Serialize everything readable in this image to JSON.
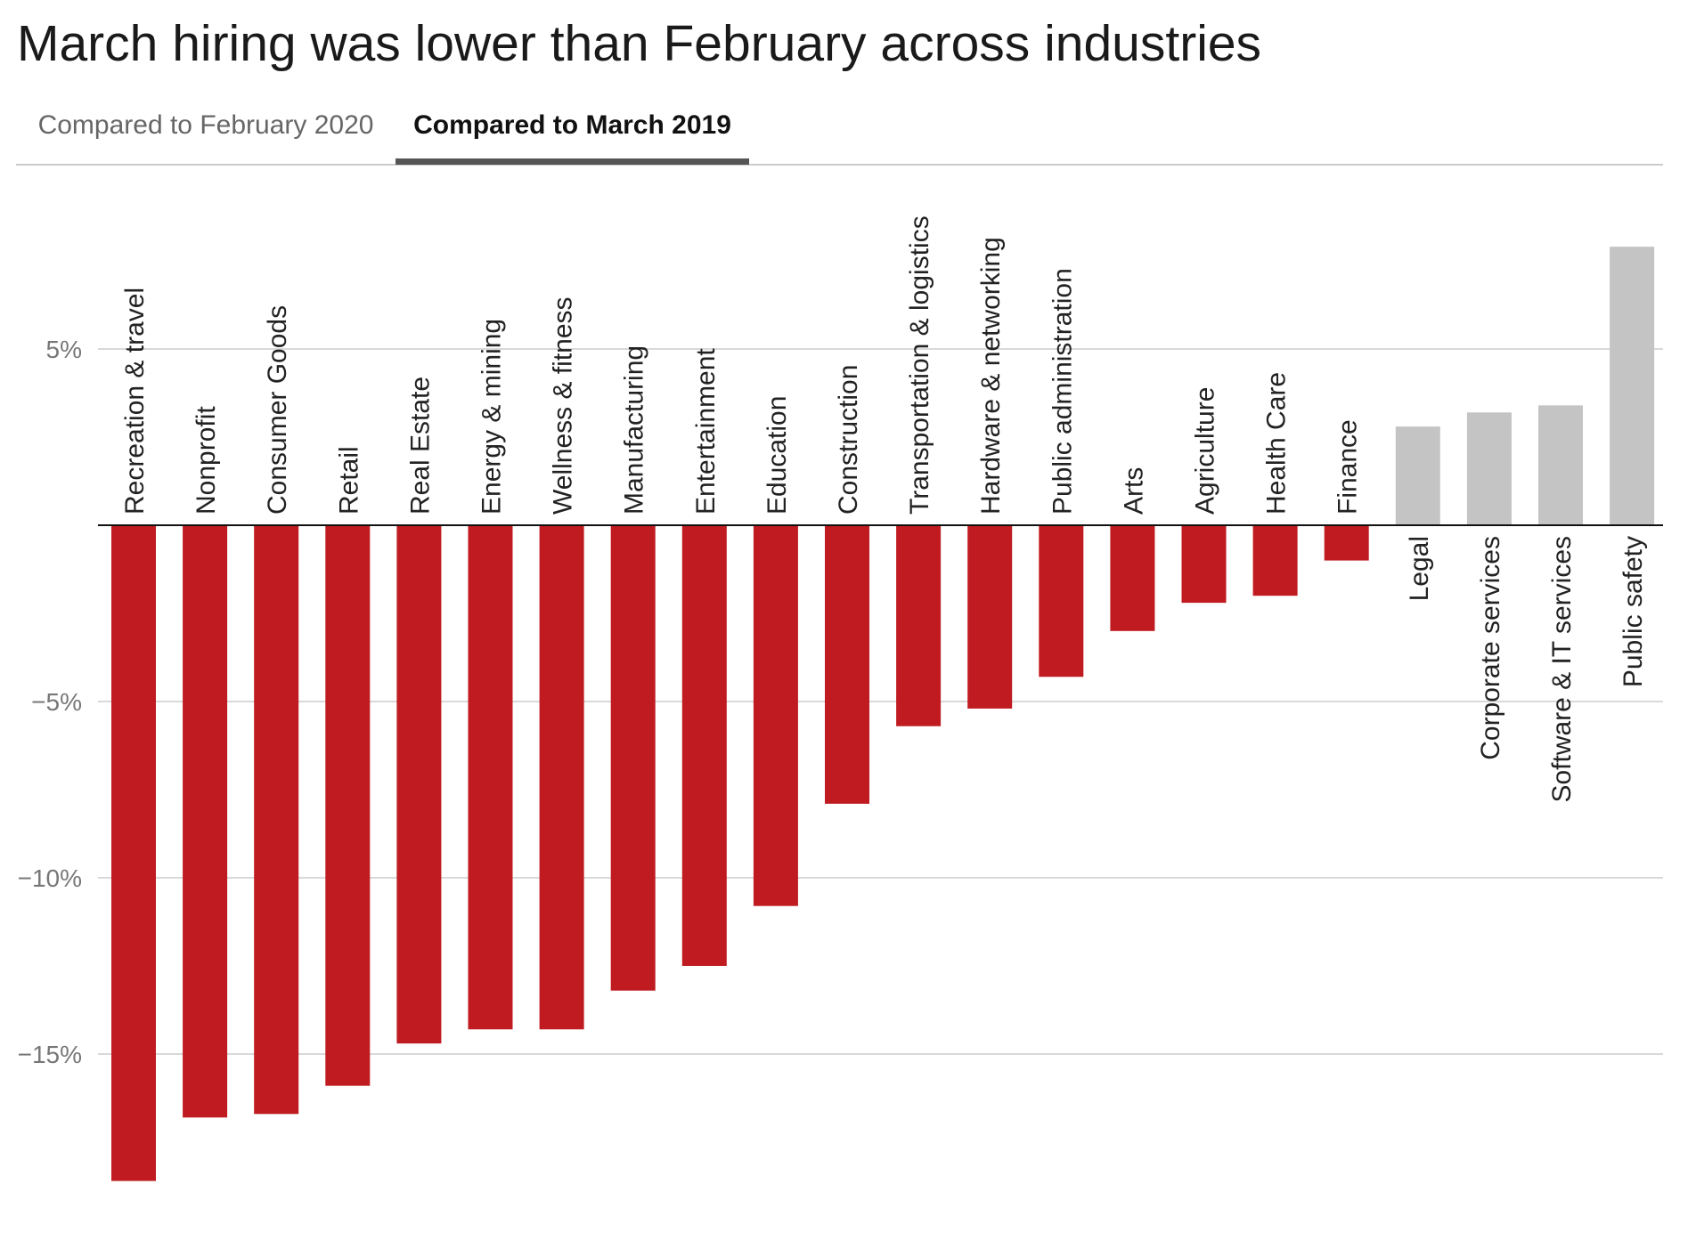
{
  "title": "March hiring was lower than February across industries",
  "tabs": [
    {
      "label": "Compared to February 2020",
      "active": false
    },
    {
      "label": "Compared to March 2019",
      "active": true
    }
  ],
  "colors": {
    "negative": "#bf1b20",
    "positive": "#c4c4c4",
    "grid": "#d9d9d9",
    "axis": "#111111"
  },
  "chart_data": {
    "type": "bar",
    "categories": [
      "Recreation & travel",
      "Nonprofit",
      "Consumer Goods",
      "Retail",
      "Real Estate",
      "Energy & mining",
      "Wellness & fitness",
      "Manufacturing",
      "Entertainment",
      "Education",
      "Construction",
      "Transportation & logistics",
      "Hardware & networking",
      "Public administration",
      "Arts",
      "Agriculture",
      "Health Care",
      "Finance",
      "Legal",
      "Corporate services",
      "Software & IT services",
      "Public safety"
    ],
    "values": [
      -18.6,
      -16.8,
      -16.7,
      -15.9,
      -14.7,
      -14.3,
      -14.3,
      -13.2,
      -12.5,
      -10.8,
      -7.9,
      -5.7,
      -5.2,
      -4.3,
      -3.0,
      -2.2,
      -2.0,
      -1.0,
      2.8,
      3.2,
      3.4,
      7.9
    ],
    "ylim": [
      -20,
      9
    ],
    "yticks": [
      5,
      -5,
      -10,
      -15
    ],
    "ytick_labels": [
      "5%",
      "−5%",
      "−10%",
      "−15%"
    ],
    "grid": true,
    "xlabel": "",
    "ylabel": ""
  }
}
